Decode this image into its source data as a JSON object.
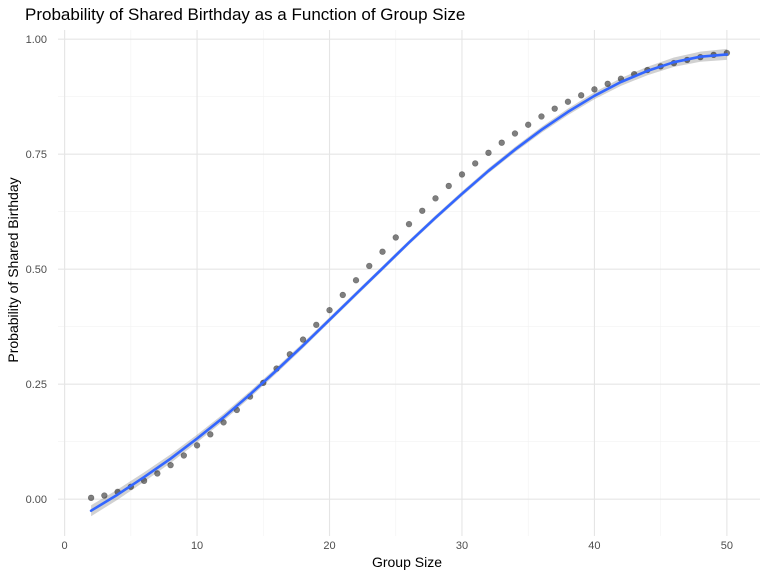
{
  "chart_data": {
    "type": "scatter",
    "title": "Probability of Shared Birthday as a Function of Group Size",
    "xlabel": "Group Size",
    "ylabel": "Probability of Shared Birthday",
    "xlim": [
      -0.5,
      52.5
    ],
    "ylim": [
      -0.08,
      1.02
    ],
    "x_ticks": [
      0,
      10,
      20,
      30,
      40,
      50
    ],
    "x_tick_labels": [
      "0",
      "10",
      "20",
      "30",
      "40",
      "50"
    ],
    "x_minor_ticks": [
      5,
      15,
      25,
      35,
      45
    ],
    "y_ticks": [
      0,
      0.25,
      0.5,
      0.75,
      1.0
    ],
    "y_tick_labels": [
      "0.00",
      "0.25",
      "0.50",
      "0.75",
      "1.00"
    ],
    "y_minor_ticks": [
      0.125,
      0.375,
      0.625,
      0.875
    ],
    "grid": true,
    "colors": {
      "points": "#000000",
      "fit_line": "#3366ff",
      "band": "#999999",
      "background": "#ffffff"
    },
    "series": [
      {
        "type": "scatter",
        "x": [
          2,
          3,
          4,
          5,
          6,
          7,
          8,
          9,
          10,
          11,
          12,
          13,
          14,
          15,
          16,
          17,
          18,
          19,
          20,
          21,
          22,
          23,
          24,
          25,
          26,
          27,
          28,
          29,
          30,
          31,
          32,
          33,
          34,
          35,
          36,
          37,
          38,
          39,
          40,
          41,
          42,
          43,
          44,
          45,
          46,
          47,
          48,
          49,
          50
        ],
        "y": [
          0.003,
          0.008,
          0.016,
          0.027,
          0.04,
          0.056,
          0.074,
          0.095,
          0.117,
          0.141,
          0.167,
          0.194,
          0.223,
          0.253,
          0.284,
          0.315,
          0.347,
          0.379,
          0.411,
          0.444,
          0.476,
          0.507,
          0.538,
          0.569,
          0.598,
          0.627,
          0.654,
          0.681,
          0.706,
          0.73,
          0.753,
          0.775,
          0.795,
          0.814,
          0.832,
          0.849,
          0.864,
          0.878,
          0.891,
          0.903,
          0.914,
          0.924,
          0.933,
          0.941,
          0.948,
          0.955,
          0.961,
          0.966,
          0.97
        ]
      },
      {
        "type": "line",
        "x": [
          2,
          4,
          6,
          8,
          10,
          12,
          14,
          16,
          18,
          20,
          22,
          24,
          26,
          28,
          30,
          32,
          34,
          36,
          38,
          40,
          42,
          44,
          46,
          48,
          50
        ],
        "y": [
          -0.025,
          0.01,
          0.048,
          0.088,
          0.132,
          0.178,
          0.228,
          0.28,
          0.334,
          0.39,
          0.446,
          0.502,
          0.558,
          0.612,
          0.664,
          0.714,
          0.76,
          0.803,
          0.842,
          0.877,
          0.907,
          0.931,
          0.95,
          0.962,
          0.967
        ]
      }
    ]
  }
}
